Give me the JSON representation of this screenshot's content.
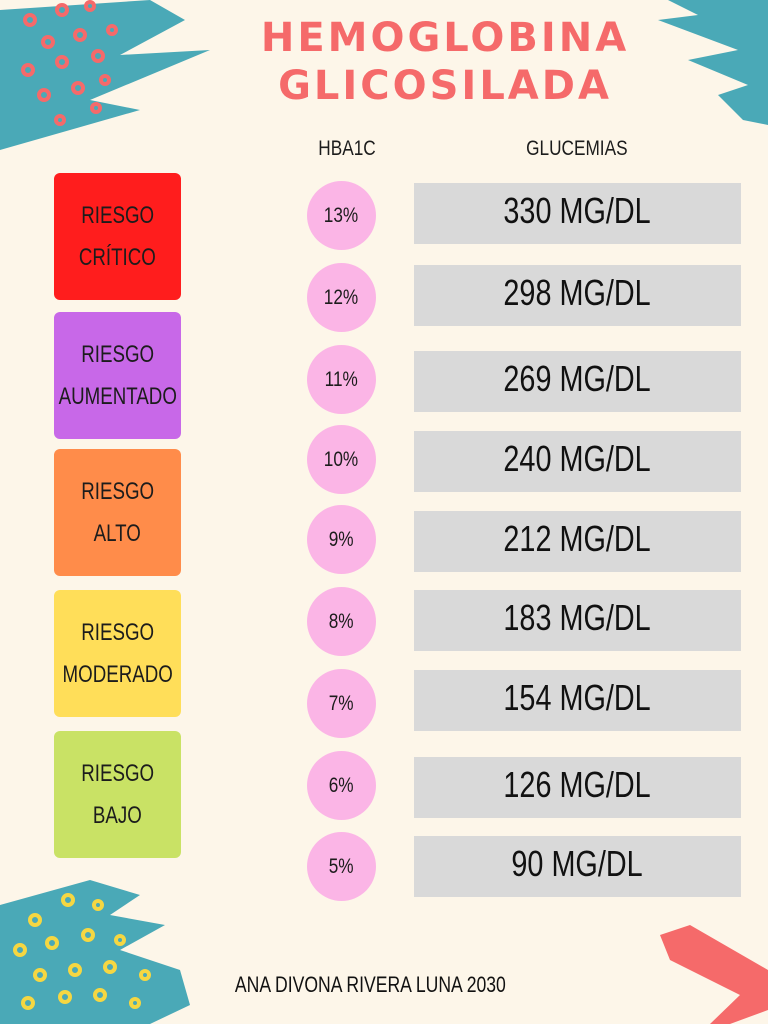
{
  "title": {
    "line1": "HEMOGLOBINA",
    "line2": "GLICOSILADA"
  },
  "headers": {
    "hba1c": "HBA1C",
    "glucemias": "GLUCEMIAS"
  },
  "risks": [
    {
      "line1": "RIESGO",
      "line2": "CRÍTICO",
      "color": "#ff1d1d"
    },
    {
      "line1": "RIESGO",
      "line2": "AUMENTADO",
      "color": "#c868e8"
    },
    {
      "line1": "RIESGO",
      "line2": "ALTO",
      "color": "#ff8c4a"
    },
    {
      "line1": "RIESGO",
      "line2": "MODERADO",
      "color": "#ffde59"
    },
    {
      "line1": "RIESGO",
      "line2": "BAJO",
      "color": "#c9e265"
    }
  ],
  "rows": [
    {
      "hba1c": "13%",
      "glucemia": "330 MG/DL"
    },
    {
      "hba1c": "12%",
      "glucemia": "298 MG/DL"
    },
    {
      "hba1c": "11%",
      "glucemia": "269 MG/DL"
    },
    {
      "hba1c": "10%",
      "glucemia": "240 MG/DL"
    },
    {
      "hba1c": "9%",
      "glucemia": "212 MG/DL"
    },
    {
      "hba1c": "8%",
      "glucemia": "183 MG/DL"
    },
    {
      "hba1c": "7%",
      "glucemia": "154 MG/DL"
    },
    {
      "hba1c": "6%",
      "glucemia": "126 MG/DL"
    },
    {
      "hba1c": "5%",
      "glucemia": "90 MG/DL"
    }
  ],
  "footer": "ANA DIVONA RIVERA LUNA 2030",
  "colors": {
    "title": "#f56a6a",
    "circle": "#fbb5e6",
    "glucemia_box": "#d9d9d9",
    "background": "#fdf6e9",
    "brush_teal": "#4aa9b7",
    "brush_coral": "#f56a6a",
    "dots_yellow": "#f5d742"
  }
}
